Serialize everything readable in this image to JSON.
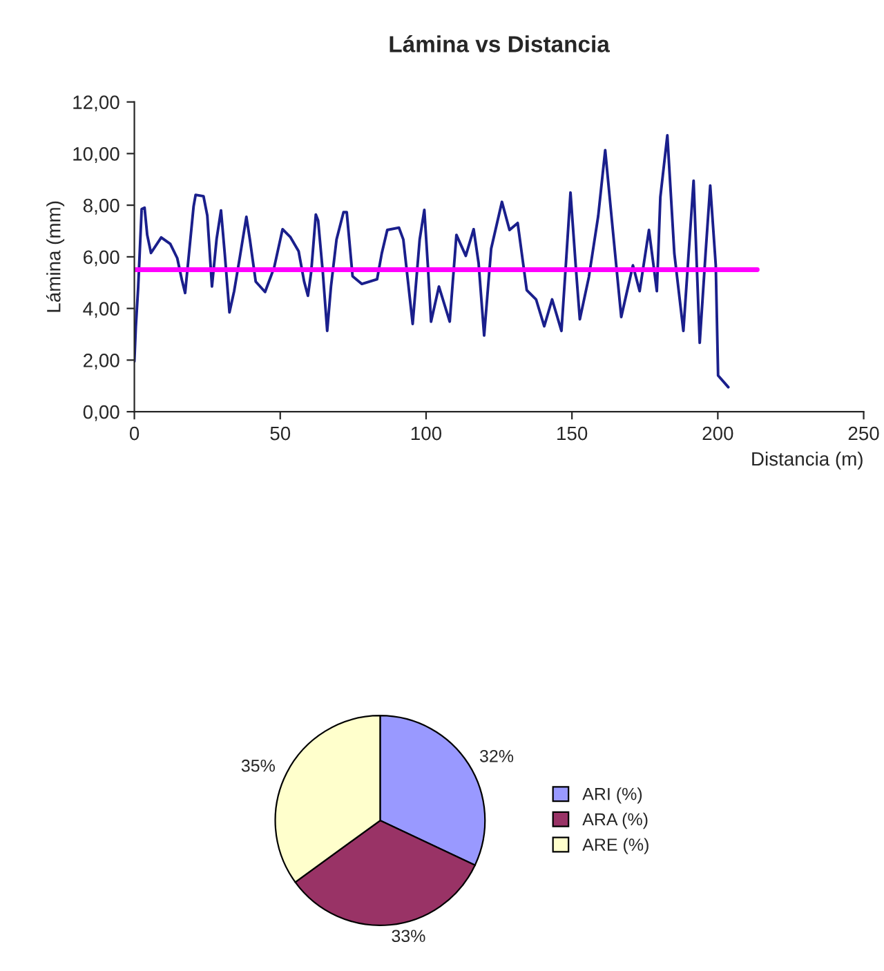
{
  "chart_data": [
    {
      "type": "line",
      "title": "Lámina vs Distancia",
      "xlabel": "Distancia (m)",
      "ylabel": "Lámina (mm)",
      "series": [
        {
          "color": "#1a1f8c",
          "x": [
            0,
            0.5,
            1.3,
            2.5,
            3.5,
            4.4,
            5.7,
            9.2,
            12.3,
            14.7,
            16.3,
            17.4,
            18.7,
            20.3,
            21.0,
            23.7,
            25.0,
            26.6,
            28.2,
            29.7,
            31.0,
            32.6,
            34.2,
            36.1,
            38.4,
            39.6,
            41.6,
            44.8,
            47.9,
            50.8,
            53.5,
            56.3,
            58.2,
            59.5,
            60.6,
            62.2,
            63.0,
            64.6,
            66.1,
            67.4,
            69.3,
            71.7,
            72.8,
            74.8,
            78.0,
            83.2,
            84.8,
            86.7,
            90.7,
            92.2,
            93.8,
            95.4,
            97.8,
            99.4,
            100.6,
            101.7,
            104.4,
            108.1,
            110.4,
            113.6,
            116.3,
            118.0,
            119.9,
            122.3,
            126.0,
            128.6,
            131.4,
            134.5,
            137.7,
            140.5,
            143.2,
            146.4,
            147.9,
            149.5,
            151.4,
            152.7,
            155.8,
            159.0,
            161.4,
            163.7,
            166.9,
            170.9,
            173.2,
            176.4,
            179.1,
            180.3,
            182.7,
            185.1,
            188.2,
            191.7,
            193.8,
            195.8,
            197.4,
            199.3,
            200.1,
            203.6
          ],
          "values": [
            1.95,
            3.3,
            4.8,
            7.85,
            7.9,
            6.85,
            6.15,
            6.75,
            6.5,
            5.95,
            5.1,
            4.6,
            6.1,
            7.95,
            8.4,
            8.35,
            7.6,
            4.85,
            6.7,
            7.8,
            6.1,
            3.85,
            4.67,
            5.95,
            7.55,
            6.67,
            5.04,
            4.64,
            5.58,
            7.07,
            6.76,
            6.22,
            5.04,
            4.49,
            5.4,
            7.64,
            7.4,
            5.4,
            3.13,
            4.85,
            6.67,
            7.73,
            7.73,
            5.25,
            4.95,
            5.13,
            6.13,
            7.04,
            7.13,
            6.67,
            5.04,
            3.4,
            6.67,
            7.82,
            5.67,
            3.49,
            4.85,
            3.49,
            6.85,
            6.04,
            7.07,
            5.76,
            2.95,
            6.31,
            8.13,
            7.04,
            7.31,
            4.71,
            4.35,
            3.31,
            4.35,
            3.13,
            5.67,
            8.49,
            5.49,
            3.58,
            5.22,
            7.58,
            10.13,
            7.4,
            3.67,
            5.67,
            4.67,
            7.04,
            4.67,
            8.31,
            10.71,
            6.13,
            3.13,
            8.95,
            2.67,
            6.13,
            8.76,
            5.67,
            1.4,
            0.95
          ]
        },
        {
          "color": "#ff00ff",
          "x": [
            0,
            213.5
          ],
          "values": [
            5.5,
            5.5
          ]
        }
      ],
      "xlim": [
        0,
        250
      ],
      "xticks": [
        0,
        50,
        100,
        150,
        200,
        250
      ],
      "ylim": [
        0,
        12
      ],
      "yticks": [
        {
          "value": 0,
          "label": "0,00"
        },
        {
          "value": 2,
          "label": "2,00"
        },
        {
          "value": 4,
          "label": "4,00"
        },
        {
          "value": 6,
          "label": "6,00"
        },
        {
          "value": 8,
          "label": "8,00"
        },
        {
          "value": 10,
          "label": "10,00"
        },
        {
          "value": 12,
          "label": "12,00"
        }
      ]
    },
    {
      "type": "pie",
      "categories": [
        "ARI (%)",
        "ARA (%)",
        "ARE (%)"
      ],
      "values": [
        32,
        33,
        35
      ],
      "colors": [
        "#9999ff",
        "#993366",
        "#ffffcc"
      ],
      "value_labels": [
        "32%",
        "33%",
        "35%"
      ],
      "legend": "right"
    }
  ]
}
